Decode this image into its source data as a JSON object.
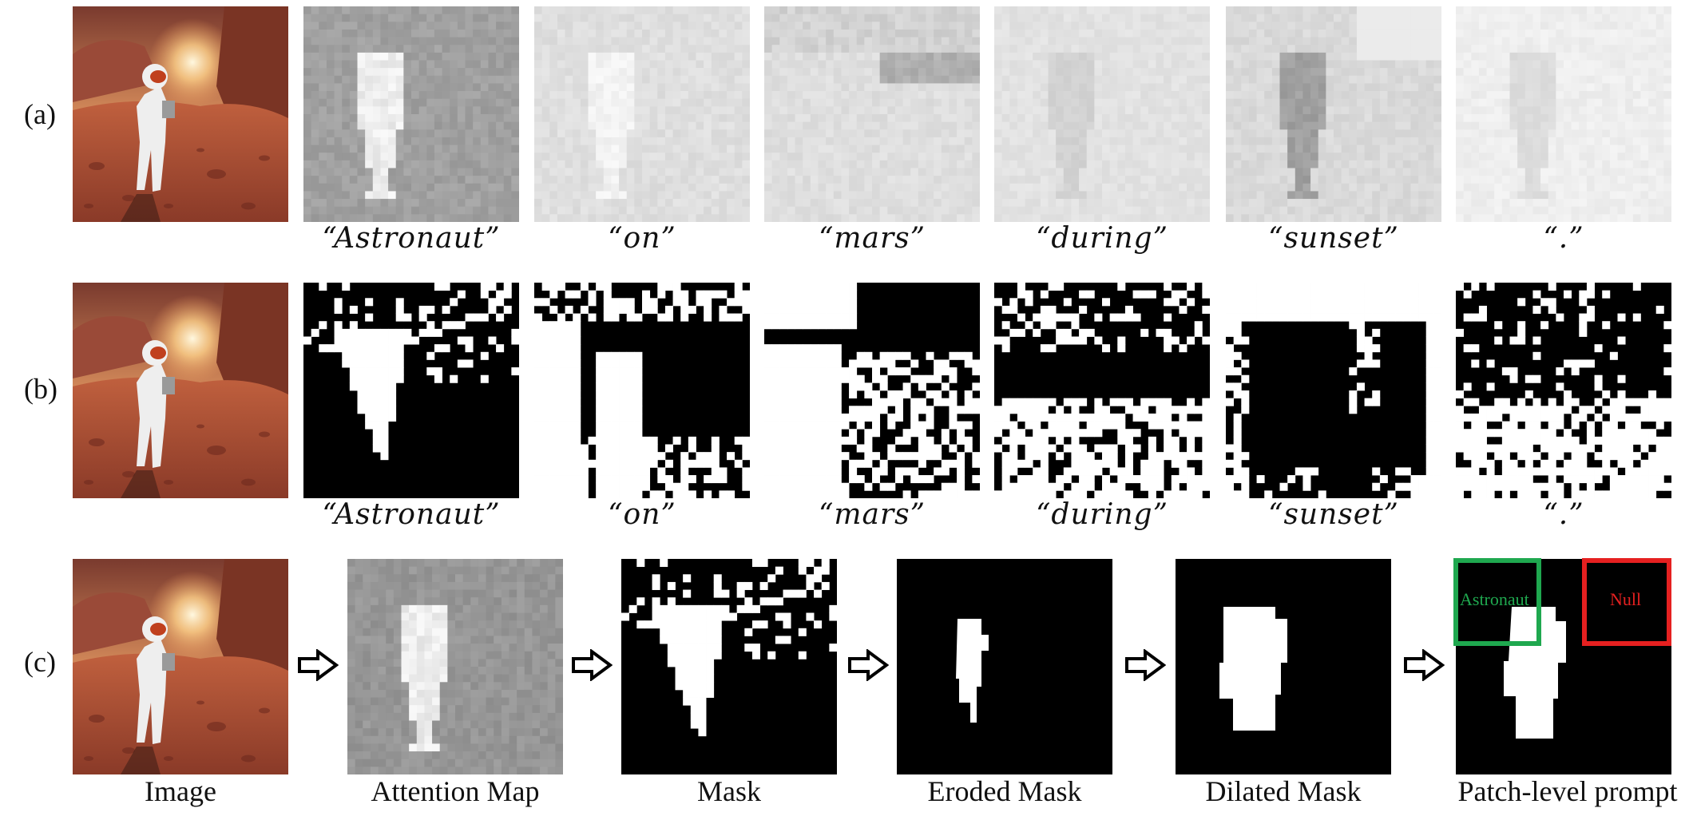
{
  "figure": {
    "row_labels": [
      "(a)",
      "(b)",
      "(c)"
    ],
    "token_words": [
      "“Astronaut”",
      "“on”",
      "“mars”",
      "“during”",
      "“sunset”",
      "“.”"
    ],
    "pipeline_captions": [
      "Image",
      "Attention Map",
      "Mask",
      "Eroded Mask",
      "Dilated Mask",
      "Patch-level prompt"
    ],
    "patch_prompt": {
      "positive_label": "Astronaut",
      "negative_label": "Null",
      "positive_color": "#1fa84f",
      "negative_color": "#e52020"
    },
    "colors": {
      "mars_sky": "#c9744a",
      "mars_ground": "#b2523a",
      "mask_fg": "#ffffff",
      "mask_bg": "#000000"
    }
  }
}
